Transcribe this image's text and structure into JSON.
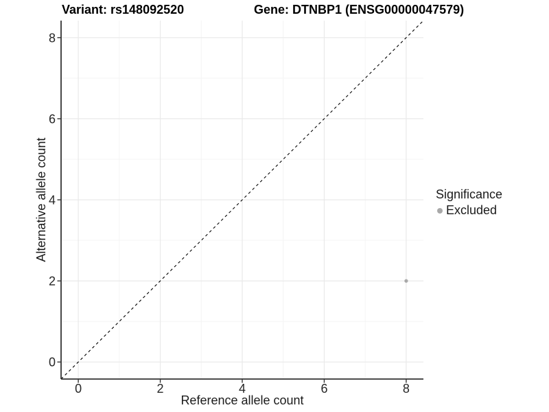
{
  "figure": {
    "title_left": "Variant: rs148092520",
    "title_right": "Gene: DTNBP1 (ENSG00000047579)"
  },
  "chart_data": {
    "type": "scatter",
    "title": "Variant: rs148092520   Gene: DTNBP1 (ENSG00000047579)",
    "xlabel": "Reference allele count",
    "ylabel": "Alternative allele count",
    "xlim": [
      -0.42,
      8.42
    ],
    "ylim": [
      -0.42,
      8.42
    ],
    "xticks": [
      0,
      2,
      4,
      6,
      8
    ],
    "yticks": [
      0,
      2,
      4,
      6,
      8
    ],
    "x_minor_ticks": [
      1,
      3,
      5,
      7
    ],
    "y_minor_ticks": [
      1,
      3,
      5,
      7
    ],
    "grid": "major-and-minor",
    "reference_line": {
      "kind": "identity",
      "slope": 1,
      "intercept": 0,
      "style": "dashed",
      "color": "#000000"
    },
    "series": [
      {
        "name": "Excluded",
        "color": "#a9a9a9",
        "points": [
          {
            "x": 8,
            "y": 2
          }
        ]
      }
    ],
    "legend": {
      "title": "Significance",
      "position": "right",
      "entries": [
        {
          "label": "Excluded",
          "color": "#a9a9a9"
        }
      ]
    },
    "style": {
      "background": "#ffffff",
      "grid_major_color": "#e9e9e9",
      "grid_minor_color": "#f4f4f4",
      "axis_line_color": "#333333",
      "tick_color": "#333333",
      "tick_label_color": "#262626",
      "point_radius": 2.6,
      "legend_key_radius": 4
    }
  }
}
